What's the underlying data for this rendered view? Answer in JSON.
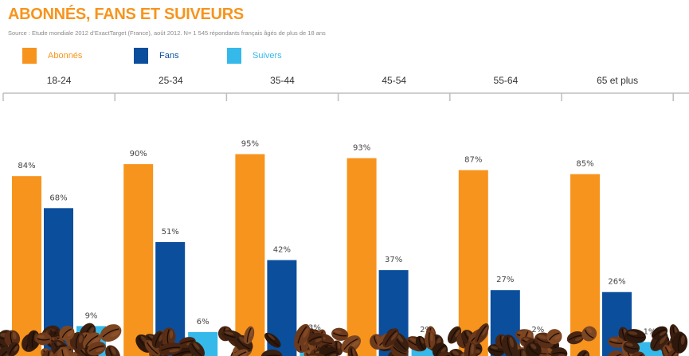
{
  "title": "ABONNÉS, FANS ET SUIVEURS",
  "source": "Source : Etude mondiale 2012 d’ExactTarget (France), août 2012. N= 1 545 répondants français âgés de plus de 18 ans",
  "colors": {
    "abonnes": "#f7941d",
    "fans": "#0b4e9c",
    "suivers": "#35b9ea",
    "title": "#f7941d",
    "grid": "#bdbdbd"
  },
  "legend": [
    {
      "label": "Abonnés",
      "color": "#f7941d"
    },
    {
      "label": "Fans",
      "color": "#0b4e9c"
    },
    {
      "label": "Suivers",
      "color": "#35b9ea"
    }
  ],
  "decoration": "coffee-beans-border",
  "chart_data": {
    "type": "bar",
    "title": "ABONNÉS, FANS ET SUIVEURS",
    "categories": [
      "18-24",
      "25-34",
      "35-44",
      "45-54",
      "55-64",
      "65 et plus"
    ],
    "series": [
      {
        "name": "Abonnés",
        "values": [
          84,
          90,
          95,
          93,
          87,
          85
        ],
        "labels": [
          "84%",
          "90%",
          "95%",
          "93%",
          "87%",
          "85%"
        ]
      },
      {
        "name": "Fans",
        "values": [
          68,
          51,
          42,
          37,
          27,
          26
        ],
        "labels": [
          "68%",
          "51%",
          "42%",
          "37%",
          "27%",
          "26%"
        ]
      },
      {
        "name": "Suivers",
        "values": [
          9,
          6,
          3,
          2,
          2,
          1
        ],
        "labels": [
          "9%",
          "6%",
          "3%",
          "2%",
          "2%",
          "1%"
        ]
      }
    ],
    "ylim": [
      0,
      100
    ],
    "grid": false,
    "legend_position": "top-left"
  }
}
